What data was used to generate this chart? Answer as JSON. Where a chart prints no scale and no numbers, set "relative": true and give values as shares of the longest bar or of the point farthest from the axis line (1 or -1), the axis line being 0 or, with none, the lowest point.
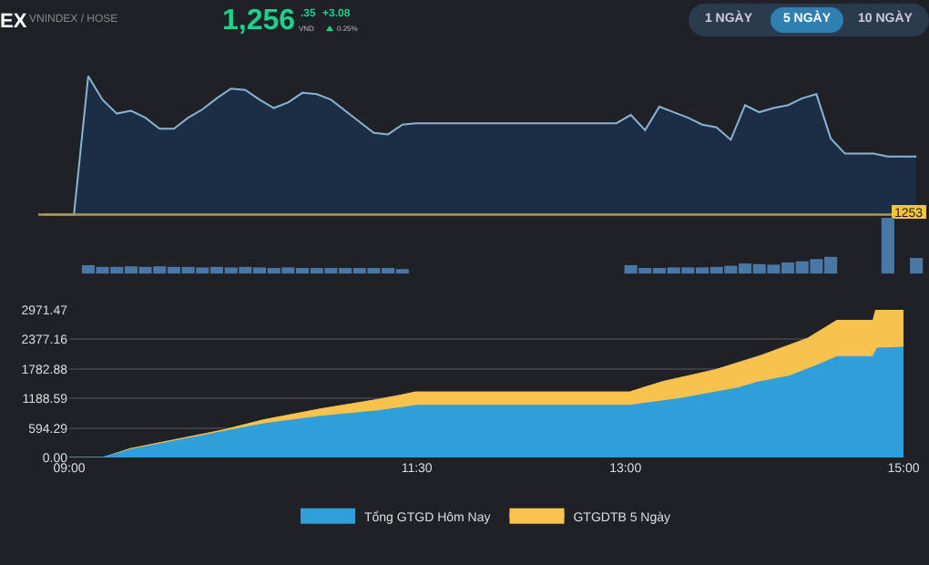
{
  "chart_data": [
    {
      "type": "area",
      "title": "EX",
      "subtitle": "VNINDEX / HOSE",
      "annotations": [
        "1,256",
        ".35",
        "VND",
        "+3.08",
        "0.25%",
        "1 NGÀY",
        "5 NGÀY",
        "10 NGÀY",
        "1253"
      ],
      "relative": true,
      "grid": false,
      "legend": false,
      "categories": [
        null,
        null,
        null,
        null,
        null,
        null,
        null,
        null,
        null,
        null,
        null,
        null,
        null,
        null,
        null,
        null,
        null,
        null,
        null,
        null,
        null,
        null,
        null,
        null,
        null,
        null,
        null,
        null,
        null,
        null,
        null,
        null,
        null,
        null,
        null,
        null,
        null,
        null,
        null,
        null,
        null,
        null,
        null,
        null,
        null,
        null,
        null,
        null,
        null,
        null,
        null,
        null,
        null,
        null,
        null,
        null,
        null,
        null,
        null,
        null,
        null,
        null
      ],
      "series": [
        {
          "color": "#8ab4d6",
          "values": [
            0,
            0,
            0,
            1,
            0.83,
            0.73,
            0.75,
            0.7,
            0.62,
            0.62,
            0.7,
            0.76,
            0.84,
            0.91,
            0.9,
            0.83,
            0.77,
            0.81,
            0.88,
            0.87,
            0.83,
            0.75,
            0.67,
            0.59,
            0.58,
            0.65,
            0.66,
            0.66,
            0.66,
            0.66,
            0.66,
            0.66,
            0.66,
            0.66,
            0.66,
            0.66,
            0.66,
            0.66,
            0.66,
            0.66,
            0.66,
            0.72,
            0.61,
            0.78,
            0.74,
            0.7,
            0.65,
            0.63,
            0.54,
            0.79,
            0.74,
            0.77,
            0.79,
            0.84,
            0.87,
            0.55,
            0.44,
            0.44,
            0.44,
            0.42,
            0.42,
            0.42
          ]
        }
      ],
      "ref_lines": [
        {
          "axis": "y",
          "value": 0,
          "color": "#a89a5a"
        }
      ]
    },
    {
      "type": "bar",
      "relative": true,
      "grid": false,
      "legend": false,
      "color": "#4a78a6",
      "categories": [
        null,
        null,
        null,
        null,
        null,
        null,
        null,
        null,
        null,
        null,
        null,
        null,
        null,
        null,
        null,
        null,
        null,
        null,
        null,
        null,
        null,
        null,
        null,
        null,
        null,
        null,
        null,
        null,
        null,
        null,
        null,
        null,
        null,
        null,
        null,
        null,
        null,
        null,
        null,
        null,
        null,
        null,
        null,
        null,
        null,
        null,
        null,
        null,
        null,
        null,
        null,
        null,
        null,
        null,
        null,
        null,
        null,
        null,
        null,
        null,
        null,
        null
      ],
      "values": [
        null,
        null,
        null,
        0.15,
        0.12,
        0.12,
        0.13,
        0.12,
        0.13,
        0.12,
        0.12,
        0.11,
        0.12,
        0.11,
        0.12,
        0.11,
        0.1,
        0.11,
        0.1,
        0.1,
        0.1,
        0.1,
        0.1,
        0.1,
        0.1,
        0.08,
        null,
        null,
        null,
        null,
        null,
        null,
        null,
        null,
        null,
        null,
        null,
        null,
        null,
        null,
        null,
        0.15,
        0.1,
        0.1,
        0.11,
        0.11,
        0.11,
        0.12,
        0.14,
        0.18,
        0.17,
        0.16,
        0.2,
        0.22,
        0.26,
        0.3,
        null,
        null,
        null,
        1,
        null,
        0.28
      ]
    },
    {
      "type": "area",
      "xlim": [
        9,
        15
      ],
      "xticks": [
        {
          "value": 9,
          "label": "09:00"
        },
        {
          "value": 11.5,
          "label": "11:30"
        },
        {
          "value": 13,
          "label": "13:00"
        },
        {
          "value": 15,
          "label": "15:00"
        }
      ],
      "ylim": [
        0,
        2971.47
      ],
      "yticks": [
        {
          "value": 0,
          "label": "0.00"
        },
        594.29,
        1188.59,
        1782.88,
        2377.16,
        2971.47
      ],
      "grid": "y",
      "legend": "bottom",
      "series": [
        {
          "name": "Tổng GTGD Hôm Nay",
          "color": "#2f9fda",
          "x": [
            9,
            9.24,
            9.44,
            10.1,
            10.4,
            10.81,
            11.22,
            11.5,
            13.03,
            13.4,
            13.81,
            13.94,
            14.18,
            14.39,
            14.52,
            14.78,
            14.81,
            15
          ],
          "values": [
            0,
            0,
            160,
            520,
            680,
            830,
            940,
            1050,
            1050,
            1190,
            1400,
            1510,
            1640,
            1870,
            2030,
            2030,
            2200,
            2220
          ]
        },
        {
          "name": "GTGDTB 5 Ngày",
          "color": "#f8c24e",
          "x": [
            9,
            9.24,
            9.44,
            10.1,
            10.4,
            10.81,
            11.22,
            11.39,
            11.49,
            13.03,
            13.27,
            13.65,
            13.98,
            14.31,
            14.52,
            14.78,
            14.8,
            15
          ],
          "values": [
            0,
            0,
            180,
            550,
            760,
            980,
            1170,
            1260,
            1320,
            1320,
            1530,
            1770,
            2060,
            2400,
            2760,
            2760,
            2970,
            2970
          ]
        }
      ]
    }
  ]
}
